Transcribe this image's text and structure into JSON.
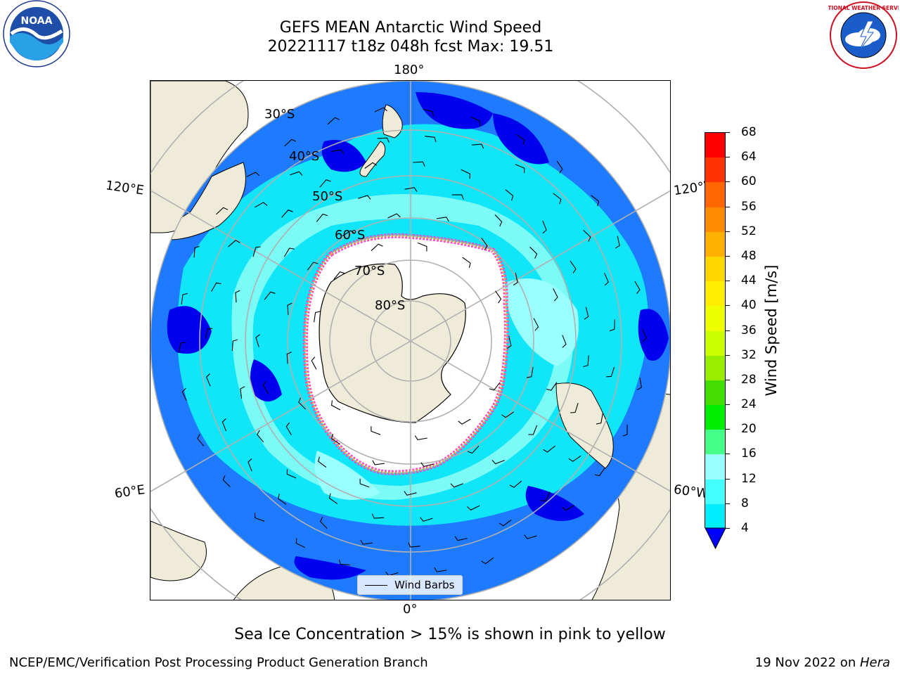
{
  "title": {
    "line1": "GEFS MEAN Antarctic Wind Speed",
    "line2": "20221117 t18z 048h fcst   Max: 19.51"
  },
  "map": {
    "lon_labels": {
      "top": "180°",
      "bottom": "0°",
      "upper_left": "120°E",
      "upper_right": "120°W",
      "lower_left": "60°E",
      "lower_right": "60°W"
    },
    "lat_labels": [
      "30°S",
      "40°S",
      "50°S",
      "60°S",
      "70°S",
      "80°S"
    ],
    "legend_label": "Wind Barbs"
  },
  "colorbar": {
    "label": "Wind Speed [m/s]",
    "ticks": [
      "68",
      "64",
      "60",
      "56",
      "52",
      "48",
      "44",
      "40",
      "36",
      "32",
      "28",
      "24",
      "20",
      "16",
      "12",
      "8",
      "4"
    ],
    "colors": [
      "#ff0000",
      "#ff3300",
      "#ff6600",
      "#ff8c00",
      "#ffb000",
      "#ffd700",
      "#ffee00",
      "#eeff00",
      "#ccff00",
      "#99ee00",
      "#44dd00",
      "#00ee00",
      "#44ff88",
      "#99ffff",
      "#44ffff",
      "#00eeff",
      "#0077ff"
    ],
    "extend_color": "#0000ff"
  },
  "notes": {
    "sea_ice": "Sea Ice Concentration > 15% is shown in pink to yellow",
    "org": "NCEP/EMC/Verification Post Processing Product Generation Branch",
    "date": "19 Nov 2022 on ",
    "host": "Hera"
  },
  "logos": {
    "left": "NOAA",
    "right": "NATIONAL WEATHER SERVICE"
  },
  "colors": {
    "land": "#eeecd9",
    "ocean_base": "#1e7bff",
    "ocean_mid": "#10e6f7",
    "ocean_light": "#7cfbf6",
    "ocean_dark": "#0000ee",
    "ice_edge": "#ff44cc",
    "ice_inner": "#f5c030",
    "grid": "#b0b0b0"
  }
}
